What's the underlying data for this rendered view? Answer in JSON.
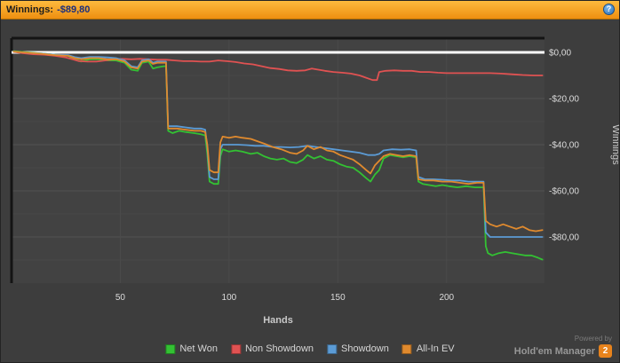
{
  "titlebar": {
    "label": "Winnings:",
    "value": "-$89,80",
    "help_icon": "?"
  },
  "colors": {
    "titlebar_top": "#fdba3e",
    "titlebar_bottom": "#ee8f10",
    "background": "#3d3d3d",
    "plot_background": "#424242",
    "zero_line": "#ffffff",
    "net_won": "#33c133",
    "non_showdown": "#e05252",
    "showdown": "#5b9bd5",
    "all_in_ev": "#e08a2e"
  },
  "chart_data": {
    "type": "line",
    "title": "Winnings: -$89,80",
    "xlabel": "Hands",
    "ylabel": "Winnings",
    "xlim": [
      0,
      245
    ],
    "ylim": [
      -100,
      6
    ],
    "grid": true,
    "legend_position": "bottom",
    "zero_line_color": "#ffffff",
    "x_ticks": [
      50,
      100,
      150,
      200
    ],
    "y_ticks": [
      {
        "value": 0,
        "label": "$0,00"
      },
      {
        "value": -20,
        "label": "-$20,00"
      },
      {
        "value": -40,
        "label": "-$40,00"
      },
      {
        "value": -60,
        "label": "-$60,00"
      },
      {
        "value": -80,
        "label": "-$80,00"
      }
    ],
    "series": [
      {
        "name": "Net Won",
        "color": "#33c133",
        "points": [
          [
            1,
            0.5
          ],
          [
            8,
            0
          ],
          [
            14,
            -0.5
          ],
          [
            20,
            -1
          ],
          [
            26,
            -1.5
          ],
          [
            29,
            -3
          ],
          [
            32,
            -4
          ],
          [
            36,
            -3
          ],
          [
            40,
            -3
          ],
          [
            44,
            -3.5
          ],
          [
            48,
            -3.5
          ],
          [
            52,
            -4.5
          ],
          [
            55,
            -7.5
          ],
          [
            58,
            -8
          ],
          [
            60,
            -4.5
          ],
          [
            63,
            -4
          ],
          [
            65,
            -7
          ],
          [
            67,
            -6.5
          ],
          [
            70,
            -6
          ],
          [
            71,
            -6
          ],
          [
            72,
            -34
          ],
          [
            74,
            -35
          ],
          [
            77,
            -34
          ],
          [
            80,
            -34.5
          ],
          [
            84,
            -35
          ],
          [
            87,
            -35.5
          ],
          [
            89,
            -36
          ],
          [
            90,
            -44
          ],
          [
            91,
            -56
          ],
          [
            93,
            -57
          ],
          [
            95,
            -57
          ],
          [
            96,
            -45
          ],
          [
            97,
            -42
          ],
          [
            100,
            -43
          ],
          [
            103,
            -42.5
          ],
          [
            106,
            -43
          ],
          [
            110,
            -44
          ],
          [
            113,
            -43.5
          ],
          [
            116,
            -45
          ],
          [
            119,
            -46
          ],
          [
            122,
            -46.5
          ],
          [
            125,
            -46
          ],
          [
            128,
            -47.5
          ],
          [
            131,
            -48
          ],
          [
            134,
            -46.5
          ],
          [
            136,
            -44.5
          ],
          [
            139,
            -46
          ],
          [
            142,
            -45
          ],
          [
            145,
            -46.5
          ],
          [
            148,
            -47
          ],
          [
            151,
            -48.5
          ],
          [
            154,
            -49.5
          ],
          [
            157,
            -50
          ],
          [
            160,
            -52
          ],
          [
            163,
            -54.5
          ],
          [
            165,
            -56
          ],
          [
            167,
            -53
          ],
          [
            169,
            -51
          ],
          [
            171,
            -46
          ],
          [
            174,
            -44.5
          ],
          [
            177,
            -45
          ],
          [
            180,
            -45.5
          ],
          [
            183,
            -45
          ],
          [
            186,
            -45.5
          ],
          [
            187,
            -56
          ],
          [
            189,
            -57
          ],
          [
            192,
            -57.5
          ],
          [
            195,
            -58
          ],
          [
            198,
            -57.5
          ],
          [
            201,
            -58
          ],
          [
            205,
            -58.5
          ],
          [
            209,
            -58
          ],
          [
            213,
            -58.5
          ],
          [
            217,
            -58.5
          ],
          [
            218,
            -84
          ],
          [
            219,
            -87
          ],
          [
            221,
            -88
          ],
          [
            224,
            -87
          ],
          [
            227,
            -86.5
          ],
          [
            230,
            -87
          ],
          [
            233,
            -87.5
          ],
          [
            236,
            -88
          ],
          [
            239,
            -88
          ],
          [
            242,
            -89
          ],
          [
            244,
            -89.8
          ]
        ]
      },
      {
        "name": "Non Showdown",
        "color": "#e05252",
        "points": [
          [
            1,
            0.2
          ],
          [
            5,
            -0.3
          ],
          [
            10,
            -0.8
          ],
          [
            15,
            -1
          ],
          [
            20,
            -1.5
          ],
          [
            25,
            -2.2
          ],
          [
            28,
            -3
          ],
          [
            31,
            -3.8
          ],
          [
            35,
            -4
          ],
          [
            39,
            -4
          ],
          [
            43,
            -3.5
          ],
          [
            47,
            -3
          ],
          [
            51,
            -2.8
          ],
          [
            55,
            -3
          ],
          [
            59,
            -2.8
          ],
          [
            63,
            -3
          ],
          [
            67,
            -3.2
          ],
          [
            71,
            -3.2
          ],
          [
            75,
            -3.5
          ],
          [
            79,
            -3.8
          ],
          [
            83,
            -3.8
          ],
          [
            87,
            -4
          ],
          [
            91,
            -4
          ],
          [
            95,
            -3.5
          ],
          [
            99,
            -3.8
          ],
          [
            103,
            -4.2
          ],
          [
            107,
            -4.8
          ],
          [
            111,
            -5.2
          ],
          [
            115,
            -6
          ],
          [
            119,
            -6.8
          ],
          [
            123,
            -7.2
          ],
          [
            127,
            -7.8
          ],
          [
            131,
            -8
          ],
          [
            135,
            -7.8
          ],
          [
            138,
            -7
          ],
          [
            141,
            -7.5
          ],
          [
            144,
            -8
          ],
          [
            148,
            -8.5
          ],
          [
            152,
            -8.8
          ],
          [
            156,
            -9.2
          ],
          [
            160,
            -10
          ],
          [
            163,
            -11
          ],
          [
            166,
            -12
          ],
          [
            168,
            -12
          ],
          [
            169,
            -8.5
          ],
          [
            172,
            -8
          ],
          [
            176,
            -7.8
          ],
          [
            180,
            -8
          ],
          [
            184,
            -8
          ],
          [
            188,
            -8.5
          ],
          [
            192,
            -8.5
          ],
          [
            196,
            -8.8
          ],
          [
            200,
            -9
          ],
          [
            205,
            -9
          ],
          [
            210,
            -9
          ],
          [
            215,
            -9
          ],
          [
            220,
            -9
          ],
          [
            225,
            -9.2
          ],
          [
            230,
            -9.5
          ],
          [
            235,
            -9.8
          ],
          [
            240,
            -10
          ],
          [
            244,
            -10
          ]
        ]
      },
      {
        "name": "Showdown",
        "color": "#5b9bd5",
        "points": [
          [
            1,
            0.3
          ],
          [
            8,
            -0.2
          ],
          [
            14,
            -0.5
          ],
          [
            20,
            -1
          ],
          [
            26,
            -1.2
          ],
          [
            29,
            -2
          ],
          [
            32,
            -2.5
          ],
          [
            36,
            -2
          ],
          [
            40,
            -2
          ],
          [
            44,
            -2.2
          ],
          [
            48,
            -2.5
          ],
          [
            52,
            -3.5
          ],
          [
            55,
            -6
          ],
          [
            58,
            -6.5
          ],
          [
            60,
            -3.5
          ],
          [
            63,
            -3
          ],
          [
            65,
            -4.5
          ],
          [
            67,
            -4
          ],
          [
            70,
            -4
          ],
          [
            71,
            -4
          ],
          [
            72,
            -32
          ],
          [
            76,
            -32
          ],
          [
            80,
            -32.5
          ],
          [
            84,
            -33
          ],
          [
            87,
            -33
          ],
          [
            89,
            -33.5
          ],
          [
            90,
            -41
          ],
          [
            91,
            -54
          ],
          [
            93,
            -55
          ],
          [
            95,
            -55
          ],
          [
            96,
            -42
          ],
          [
            97,
            -40
          ],
          [
            100,
            -40
          ],
          [
            104,
            -40
          ],
          [
            108,
            -40.2
          ],
          [
            112,
            -40.5
          ],
          [
            116,
            -40.5
          ],
          [
            120,
            -41
          ],
          [
            124,
            -41
          ],
          [
            128,
            -41.2
          ],
          [
            132,
            -41
          ],
          [
            136,
            -40.5
          ],
          [
            140,
            -41
          ],
          [
            144,
            -41.5
          ],
          [
            148,
            -42
          ],
          [
            152,
            -42.5
          ],
          [
            156,
            -43
          ],
          [
            160,
            -43.5
          ],
          [
            164,
            -44.5
          ],
          [
            167,
            -44.5
          ],
          [
            169,
            -44
          ],
          [
            171,
            -42.5
          ],
          [
            175,
            -42
          ],
          [
            179,
            -42.2
          ],
          [
            183,
            -42
          ],
          [
            186,
            -42.5
          ],
          [
            187,
            -54
          ],
          [
            190,
            -55
          ],
          [
            194,
            -55
          ],
          [
            198,
            -55.2
          ],
          [
            202,
            -55.5
          ],
          [
            206,
            -55.5
          ],
          [
            210,
            -56
          ],
          [
            214,
            -56
          ],
          [
            217,
            -56
          ],
          [
            218,
            -78
          ],
          [
            220,
            -80
          ],
          [
            225,
            -80
          ],
          [
            230,
            -80
          ],
          [
            235,
            -80
          ],
          [
            240,
            -80
          ],
          [
            244,
            -80
          ]
        ]
      },
      {
        "name": "All-In EV",
        "color": "#e08a2e",
        "points": [
          [
            1,
            0.3
          ],
          [
            8,
            -0.2
          ],
          [
            14,
            -0.6
          ],
          [
            20,
            -1.2
          ],
          [
            26,
            -1.5
          ],
          [
            29,
            -2.5
          ],
          [
            32,
            -3
          ],
          [
            36,
            -2.5
          ],
          [
            40,
            -2.5
          ],
          [
            44,
            -3
          ],
          [
            48,
            -3
          ],
          [
            52,
            -4
          ],
          [
            55,
            -6.5
          ],
          [
            58,
            -7
          ],
          [
            60,
            -4
          ],
          [
            63,
            -3.5
          ],
          [
            65,
            -5
          ],
          [
            67,
            -4.5
          ],
          [
            70,
            -4.5
          ],
          [
            71,
            -4.5
          ],
          [
            72,
            -33
          ],
          [
            76,
            -33
          ],
          [
            80,
            -33.5
          ],
          [
            84,
            -34
          ],
          [
            87,
            -34
          ],
          [
            89,
            -34.5
          ],
          [
            90,
            -40
          ],
          [
            91,
            -51
          ],
          [
            93,
            -52
          ],
          [
            95,
            -52
          ],
          [
            96,
            -39
          ],
          [
            97,
            -36.5
          ],
          [
            100,
            -37
          ],
          [
            103,
            -36.5
          ],
          [
            106,
            -37
          ],
          [
            110,
            -37.5
          ],
          [
            113,
            -38.5
          ],
          [
            116,
            -39.5
          ],
          [
            120,
            -41
          ],
          [
            124,
            -42
          ],
          [
            128,
            -43.5
          ],
          [
            131,
            -44
          ],
          [
            134,
            -42.5
          ],
          [
            136,
            -40.5
          ],
          [
            139,
            -42
          ],
          [
            142,
            -41
          ],
          [
            145,
            -42.5
          ],
          [
            148,
            -43
          ],
          [
            151,
            -44.5
          ],
          [
            154,
            -45.5
          ],
          [
            157,
            -46.5
          ],
          [
            160,
            -48.5
          ],
          [
            163,
            -51
          ],
          [
            165,
            -52.5
          ],
          [
            167,
            -49
          ],
          [
            169,
            -47
          ],
          [
            171,
            -45
          ],
          [
            174,
            -44
          ],
          [
            177,
            -44.5
          ],
          [
            180,
            -45
          ],
          [
            183,
            -44.5
          ],
          [
            186,
            -45
          ],
          [
            187,
            -55
          ],
          [
            190,
            -55.5
          ],
          [
            194,
            -55.5
          ],
          [
            198,
            -56
          ],
          [
            202,
            -56
          ],
          [
            206,
            -56.5
          ],
          [
            210,
            -57
          ],
          [
            214,
            -56.5
          ],
          [
            217,
            -56.5
          ],
          [
            218,
            -73
          ],
          [
            220,
            -74.5
          ],
          [
            223,
            -75.5
          ],
          [
            226,
            -74.5
          ],
          [
            229,
            -75.5
          ],
          [
            232,
            -76.5
          ],
          [
            235,
            -75.5
          ],
          [
            238,
            -77
          ],
          [
            241,
            -77.5
          ],
          [
            244,
            -77
          ]
        ]
      }
    ],
    "legend": [
      "Net Won",
      "Non Showdown",
      "Showdown",
      "All-In EV"
    ]
  },
  "footer": {
    "powered_by": "Powered by",
    "brand": "Hold'em Manager",
    "brand_badge": "2"
  }
}
